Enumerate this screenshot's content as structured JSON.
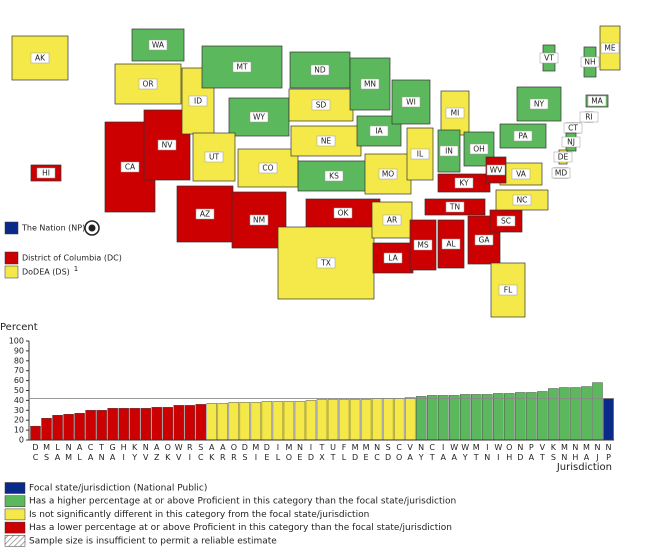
{
  "map": {
    "states": [
      {
        "label": "WA",
        "color": "#5cb85c"
      },
      {
        "label": "OR",
        "color": "#f5e94a"
      },
      {
        "label": "CA",
        "color": "#cc0000"
      },
      {
        "label": "NV",
        "color": "#cc0000"
      },
      {
        "label": "ID",
        "color": "#f5e94a"
      },
      {
        "label": "MT",
        "color": "#5cb85c"
      },
      {
        "label": "WY",
        "color": "#5cb85c"
      },
      {
        "label": "UT",
        "color": "#f5e94a"
      },
      {
        "label": "AZ",
        "color": "#cc0000"
      },
      {
        "label": "NM",
        "color": "#cc0000"
      },
      {
        "label": "CO",
        "color": "#f5e94a"
      },
      {
        "label": "ND",
        "color": "#5cb85c"
      },
      {
        "label": "SD",
        "color": "#f5e94a"
      },
      {
        "label": "NE",
        "color": "#f5e94a"
      },
      {
        "label": "KS",
        "color": "#5cb85c"
      },
      {
        "label": "OK",
        "color": "#cc0000"
      },
      {
        "label": "TX",
        "color": "#f5e94a"
      },
      {
        "label": "MN",
        "color": "#5cb85c"
      },
      {
        "label": "IA",
        "color": "#5cb85c"
      },
      {
        "label": "MO",
        "color": "#f5e94a"
      },
      {
        "label": "AR",
        "color": "#f5e94a"
      },
      {
        "label": "LA",
        "color": "#cc0000"
      },
      {
        "label": "WI",
        "color": "#5cb85c"
      },
      {
        "label": "IL",
        "color": "#f5e94a"
      },
      {
        "label": "MI",
        "color": "#f5e94a"
      },
      {
        "label": "IN",
        "color": "#5cb85c"
      },
      {
        "label": "OH",
        "color": "#5cb85c"
      },
      {
        "label": "KY",
        "color": "#cc0000"
      },
      {
        "label": "TN",
        "color": "#cc0000"
      },
      {
        "label": "MS",
        "color": "#cc0000"
      },
      {
        "label": "AL",
        "color": "#cc0000"
      },
      {
        "label": "GA",
        "color": "#cc0000"
      },
      {
        "label": "FL",
        "color": "#f5e94a"
      },
      {
        "label": "SC",
        "color": "#cc0000"
      },
      {
        "label": "NC",
        "color": "#f5e94a"
      },
      {
        "label": "VA",
        "color": "#f5e94a"
      },
      {
        "label": "WV",
        "color": "#cc0000"
      },
      {
        "label": "PA",
        "color": "#5cb85c"
      },
      {
        "label": "NY",
        "color": "#5cb85c"
      },
      {
        "label": "VT",
        "color": "#5cb85c"
      },
      {
        "label": "NH",
        "color": "#5cb85c"
      },
      {
        "label": "ME",
        "color": "#f5e94a"
      },
      {
        "label": "MA",
        "color": "#5cb85c"
      },
      {
        "label": "RI",
        "color": "#cc0000"
      },
      {
        "label": "CT",
        "color": "#5cb85c"
      },
      {
        "label": "NJ",
        "color": "#5cb85c"
      },
      {
        "label": "DE",
        "color": "#f5e94a"
      },
      {
        "label": "MD",
        "color": "#f5e94a"
      },
      {
        "label": "AK",
        "color": "#f5e94a"
      },
      {
        "label": "HI",
        "color": "#cc0000"
      }
    ],
    "legend": [
      {
        "label": "The Nation (NP)",
        "color": "#0a2a8a"
      },
      {
        "label": "District of Columbia (DC)",
        "color": "#cc0000"
      },
      {
        "label": "DoDEA (DS)",
        "note": "1",
        "color": "#f5e94a"
      }
    ]
  },
  "chart_data": {
    "type": "bar",
    "y_label": "Percent",
    "x_label": "Jurisdiction",
    "categories": [
      "DC",
      "MS",
      "LA",
      "NM",
      "AL",
      "CA",
      "TN",
      "GA",
      "HI",
      "KY",
      "NV",
      "AZ",
      "OK",
      "WV",
      "RI",
      "SC",
      "AK",
      "AR",
      "OR",
      "DS",
      "MI",
      "DE",
      "IL",
      "MO",
      "NE",
      "ID",
      "TX",
      "UT",
      "FL",
      "MD",
      "ME",
      "NC",
      "SD",
      "CO",
      "VA",
      "NY",
      "CT",
      "IA",
      "WA",
      "WY",
      "MT",
      "IN",
      "WI",
      "OH",
      "ND",
      "PA",
      "VT",
      "KS",
      "MN",
      "NH",
      "MA",
      "NJ",
      "NP"
    ],
    "values": [
      14,
      22,
      25,
      26,
      27,
      30,
      30,
      32,
      32,
      32,
      32,
      33,
      33,
      35,
      35,
      36,
      37,
      37,
      38,
      38,
      38,
      39,
      39,
      39,
      39,
      40,
      41,
      41,
      41,
      41,
      41,
      42,
      42,
      42,
      43,
      44,
      45,
      45,
      45,
      46,
      46,
      46,
      47,
      47,
      48,
      48,
      49,
      52,
      53,
      53,
      54,
      58,
      42
    ],
    "colors": [
      "#cc0000",
      "#cc0000",
      "#cc0000",
      "#cc0000",
      "#cc0000",
      "#cc0000",
      "#cc0000",
      "#cc0000",
      "#cc0000",
      "#cc0000",
      "#cc0000",
      "#cc0000",
      "#cc0000",
      "#cc0000",
      "#cc0000",
      "#cc0000",
      "#f5e94a",
      "#f5e94a",
      "#f5e94a",
      "#f5e94a",
      "#f5e94a",
      "#f5e94a",
      "#f5e94a",
      "#f5e94a",
      "#f5e94a",
      "#f5e94a",
      "#f5e94a",
      "#f5e94a",
      "#f5e94a",
      "#f5e94a",
      "#f5e94a",
      "#f5e94a",
      "#f5e94a",
      "#f5e94a",
      "#f5e94a",
      "#5cb85c",
      "#5cb85c",
      "#5cb85c",
      "#5cb85c",
      "#5cb85c",
      "#5cb85c",
      "#5cb85c",
      "#5cb85c",
      "#5cb85c",
      "#5cb85c",
      "#5cb85c",
      "#5cb85c",
      "#5cb85c",
      "#5cb85c",
      "#5cb85c",
      "#5cb85c",
      "#5cb85c",
      "#0a2a8a"
    ],
    "ylim": [
      0,
      100
    ],
    "yticks": [
      0,
      10,
      20,
      30,
      40,
      50,
      60,
      70,
      80,
      90,
      100
    ],
    "legend": [
      {
        "label": "Focal state/jurisdiction (National Public)",
        "color": "#0a2a8a"
      },
      {
        "label": "Has a higher percentage at or above Proficient in this category than the focal state/jurisdiction",
        "color": "#5cb85c"
      },
      {
        "label": "Is not significantly different in this category from the focal state/jurisdiction",
        "color": "#f5e94a"
      },
      {
        "label": "Has a lower percentage at or above Proficient in this category than the focal state/jurisdiction",
        "color": "#cc0000"
      },
      {
        "label": "Sample size is insufficient to permit a reliable estimate",
        "color": "hatch"
      }
    ]
  }
}
